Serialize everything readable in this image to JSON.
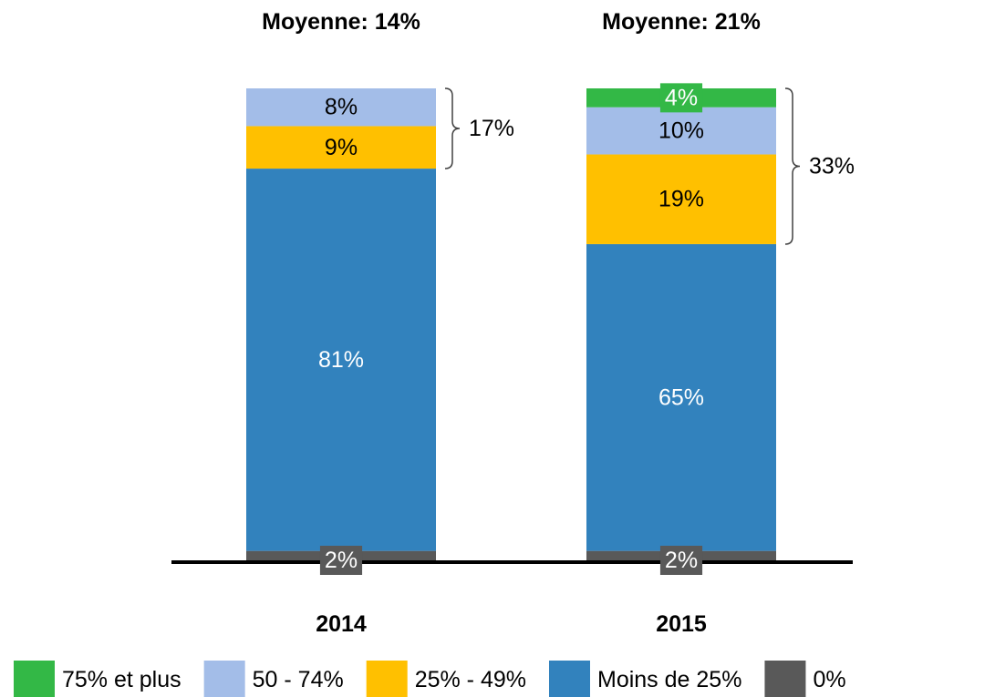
{
  "chart_data": {
    "type": "stacked_bar",
    "categories": [
      "2014",
      "2015"
    ],
    "averages": [
      "Moyenne: 14%",
      "Moyenne: 21%"
    ],
    "bracket_labels": [
      "17%",
      "33%"
    ],
    "ylim": [
      0,
      100
    ],
    "series": [
      {
        "name": "0%",
        "color": "#595959",
        "values": [
          2,
          2
        ],
        "value_labels": [
          "2%",
          "2%"
        ]
      },
      {
        "name": "Moins de 25%",
        "color": "#3282bd",
        "values": [
          81,
          65
        ],
        "value_labels": [
          "81%",
          "65%"
        ]
      },
      {
        "name": "25% - 49%",
        "color": "#ffc000",
        "values": [
          9,
          19
        ],
        "value_labels": [
          "9%",
          "19%"
        ]
      },
      {
        "name": "50 - 74%",
        "color": "#a3bde8",
        "values": [
          8,
          10
        ],
        "value_labels": [
          "8%",
          "10%"
        ]
      },
      {
        "name": "75% et plus",
        "color": "#33b846",
        "values": [
          null,
          4
        ],
        "value_labels": [
          null,
          "4%"
        ]
      }
    ]
  }
}
